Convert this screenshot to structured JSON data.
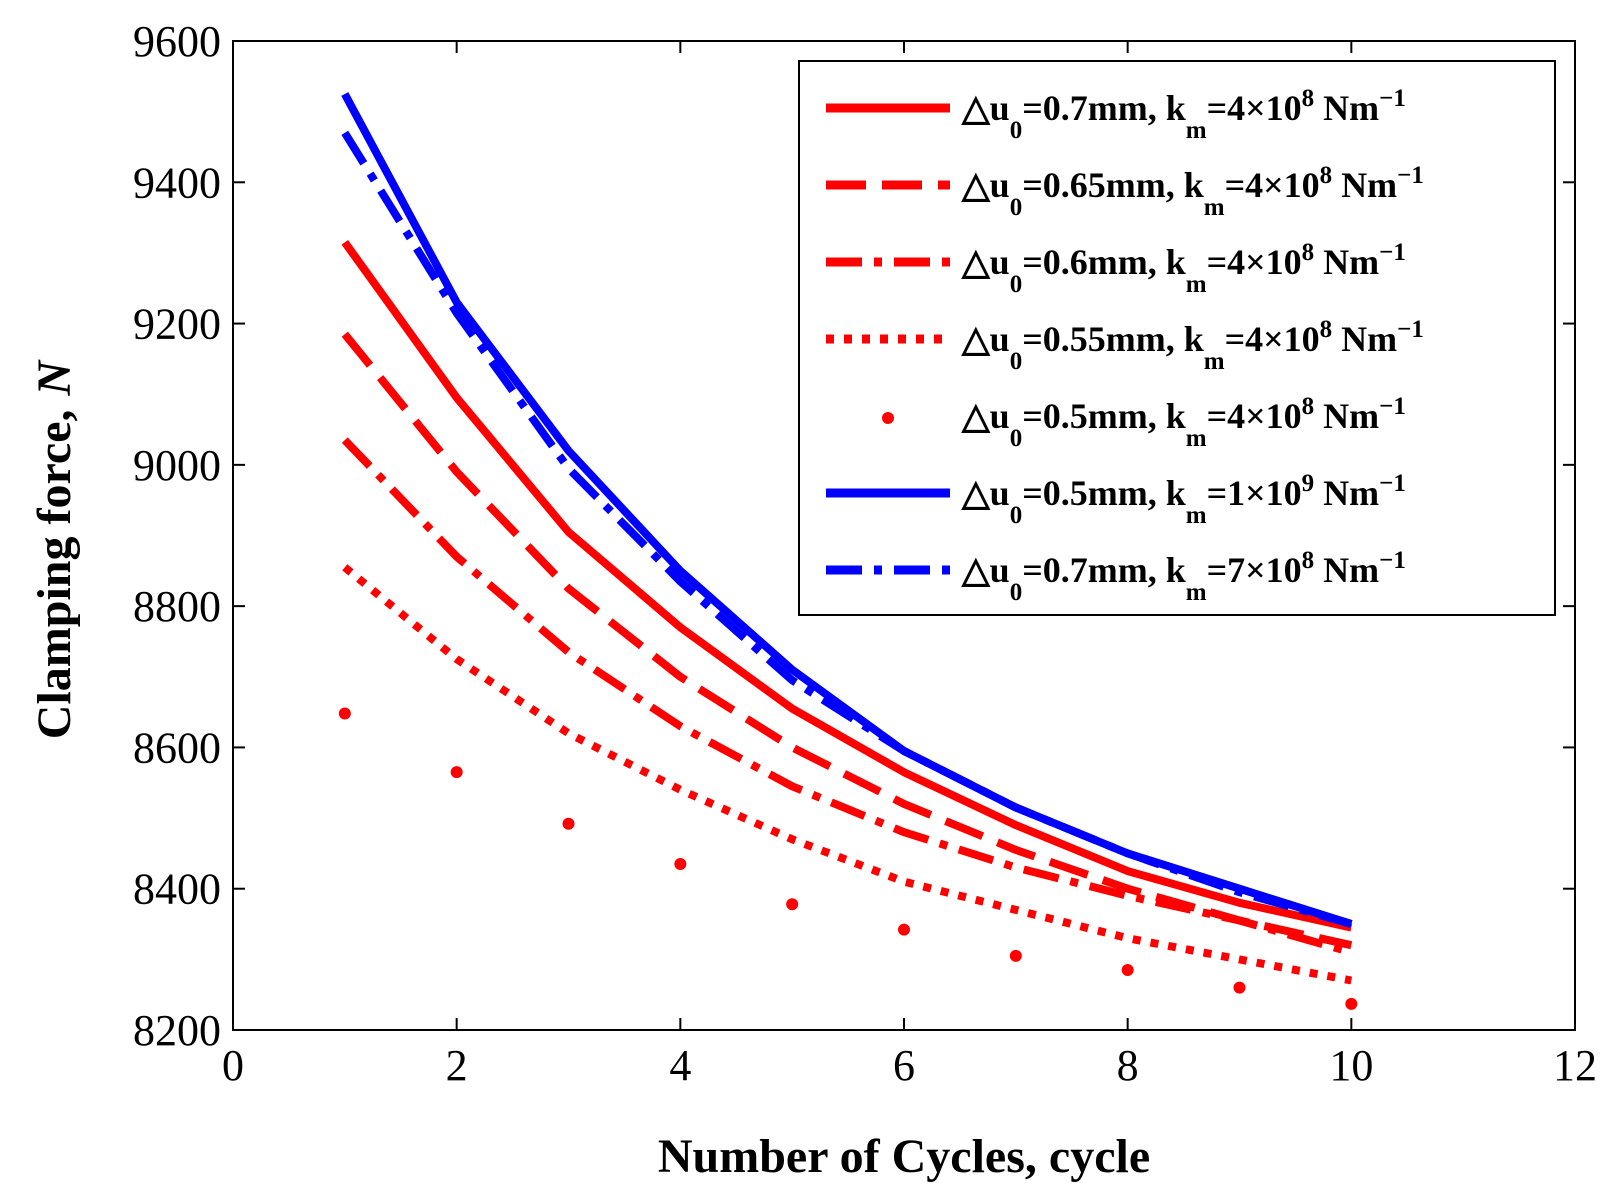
{
  "chart_data": {
    "type": "line",
    "title": "",
    "xlabel": "Number of Cycles, cycle",
    "ylabel_main": "Clamping force,",
    "ylabel_unit": "N",
    "xlim": [
      0,
      12
    ],
    "ylim": [
      8200,
      9600
    ],
    "xticks": [
      "0",
      "2",
      "4",
      "6",
      "8",
      "10",
      "12"
    ],
    "yticks": [
      "8200",
      "8400",
      "8600",
      "8800",
      "9000",
      "9200",
      "9400",
      "9600"
    ],
    "grid": false,
    "legend_position": "top-right",
    "x": [
      1,
      2,
      3,
      4,
      5,
      6,
      7,
      8,
      9,
      10
    ],
    "series": [
      {
        "name": "Δu0=0.7mm, km=4×10^8 Nm^-1",
        "legend": {
          "delta": "△u",
          "sub0": "0",
          "eq": "=0.7mm, k",
          "subm": "m",
          "coef": "=4×10",
          "exp": "8",
          "unit": " Nm",
          "unit_exp": "−1"
        },
        "color": "#ff0000",
        "style": "solid",
        "values": [
          9315,
          9095,
          8905,
          8770,
          8655,
          8565,
          8490,
          8425,
          8380,
          8345
        ]
      },
      {
        "name": "Δu0=0.65mm, km=4×10^8 Nm^-1",
        "legend": {
          "delta": "△u",
          "sub0": "0",
          "eq": "=0.65mm, k",
          "subm": "m",
          "coef": "=4×10",
          "exp": "8",
          "unit": " Nm",
          "unit_exp": "−1"
        },
        "color": "#ff0000",
        "style": "dashed",
        "values": [
          9185,
          8990,
          8825,
          8700,
          8600,
          8520,
          8455,
          8400,
          8355,
          8320
        ]
      },
      {
        "name": "Δu0=0.6mm, km=4×10^8 Nm^-1",
        "legend": {
          "delta": "△u",
          "sub0": "0",
          "eq": "=0.6mm, k",
          "subm": "m",
          "coef": "=4×10",
          "exp": "8",
          "unit": " Nm",
          "unit_exp": "−1"
        },
        "color": "#ff0000",
        "style": "dashdot",
        "values": [
          9035,
          8870,
          8735,
          8630,
          8545,
          8480,
          8430,
          8390,
          8355,
          8310
        ]
      },
      {
        "name": "Δu0=0.55mm, km=4×10^8 Nm^-1",
        "legend": {
          "delta": "△u",
          "sub0": "0",
          "eq": "=0.55mm, k",
          "subm": "m",
          "coef": "=4×10",
          "exp": "8",
          "unit": " Nm",
          "unit_exp": "−1"
        },
        "color": "#ff0000",
        "style": "dotted",
        "values": [
          8855,
          8725,
          8620,
          8540,
          8470,
          8410,
          8370,
          8330,
          8300,
          8270
        ]
      },
      {
        "name": "Δu0=0.5mm, km=4×10^8 Nm^-1",
        "legend": {
          "delta": "△u",
          "sub0": "0",
          "eq": "=0.5mm, k",
          "subm": "m",
          "coef": "=4×10",
          "exp": "8",
          "unit": " Nm",
          "unit_exp": "−1"
        },
        "color": "#ff0000",
        "style": "points",
        "values": [
          8648,
          8565,
          8492,
          8435,
          8378,
          8342,
          8305,
          8285,
          8260,
          8237
        ]
      },
      {
        "name": "Δu0=0.5mm, km=1×10^9 Nm^-1",
        "legend": {
          "delta": "△u",
          "sub0": "0",
          "eq": "=0.5mm, k",
          "subm": "m",
          "coef": "=1×10",
          "exp": "9",
          "unit": " Nm",
          "unit_exp": "−1"
        },
        "color": "#0000ff",
        "style": "solid",
        "values": [
          9525,
          9230,
          9020,
          8850,
          8710,
          8595,
          8515,
          8450,
          8400,
          8350
        ]
      },
      {
        "name": "Δu0=0.7mm, km=7×10^8 Nm^-1",
        "legend": {
          "delta": "△u",
          "sub0": "0",
          "eq": "=0.7mm, k",
          "subm": "m",
          "coef": "=7×10",
          "exp": "8",
          "unit": " Nm",
          "unit_exp": "−1"
        },
        "color": "#0000ff",
        "style": "dashdot",
        "values": [
          9470,
          9215,
          8995,
          8835,
          8695,
          8595,
          8515,
          8450,
          8395,
          8350
        ]
      }
    ]
  }
}
